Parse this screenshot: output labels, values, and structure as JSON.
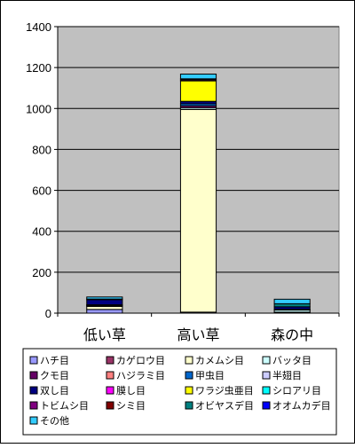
{
  "chart_data": {
    "type": "bar",
    "stacked": true,
    "categories": [
      "低い草",
      "高い草",
      "森の中"
    ],
    "ylim": [
      0,
      1400
    ],
    "yticks": [
      0,
      200,
      400,
      600,
      800,
      1000,
      1200,
      1400
    ],
    "grid": true,
    "legend_position": "bottom",
    "plot_background": "#c0c0c0",
    "series": [
      {
        "name": "ハチ目",
        "color": "#9999ff",
        "values": [
          18,
          5,
          3
        ]
      },
      {
        "name": "カゲロウ目",
        "color": "#993366",
        "values": [
          0,
          0,
          0
        ]
      },
      {
        "name": "カメムシ目",
        "color": "#ffffcc",
        "values": [
          15,
          990,
          2
        ]
      },
      {
        "name": "バッタ目",
        "color": "#ccffff",
        "values": [
          3,
          8,
          10
        ]
      },
      {
        "name": "クモ目",
        "color": "#660066",
        "values": [
          3,
          10,
          2
        ]
      },
      {
        "name": "ハジラミ目",
        "color": "#ff8080",
        "values": [
          0,
          0,
          0
        ]
      },
      {
        "name": "甲虫目",
        "color": "#0066cc",
        "values": [
          2,
          10,
          2
        ]
      },
      {
        "name": "半翅目",
        "color": "#ccccff",
        "values": [
          0,
          0,
          0
        ]
      },
      {
        "name": "双し目",
        "color": "#000080",
        "values": [
          25,
          12,
          12
        ]
      },
      {
        "name": "膜し目",
        "color": "#ff00ff",
        "values": [
          0,
          0,
          0
        ]
      },
      {
        "name": "ワラジ虫亜目",
        "color": "#ffff00",
        "values": [
          0,
          100,
          0
        ]
      },
      {
        "name": "シロアリ目",
        "color": "#00ffff",
        "values": [
          0,
          0,
          0
        ]
      },
      {
        "name": "トビムシ目",
        "color": "#800080",
        "values": [
          0,
          5,
          0
        ]
      },
      {
        "name": "シミ目",
        "color": "#800000",
        "values": [
          0,
          0,
          0
        ]
      },
      {
        "name": "オビヤスデ目",
        "color": "#008080",
        "values": [
          3,
          5,
          15
        ]
      },
      {
        "name": "オオムカデ目",
        "color": "#0000ff",
        "values": [
          0,
          0,
          0
        ]
      },
      {
        "name": "その他",
        "color": "#33ccff",
        "values": [
          10,
          23,
          22
        ]
      }
    ]
  }
}
